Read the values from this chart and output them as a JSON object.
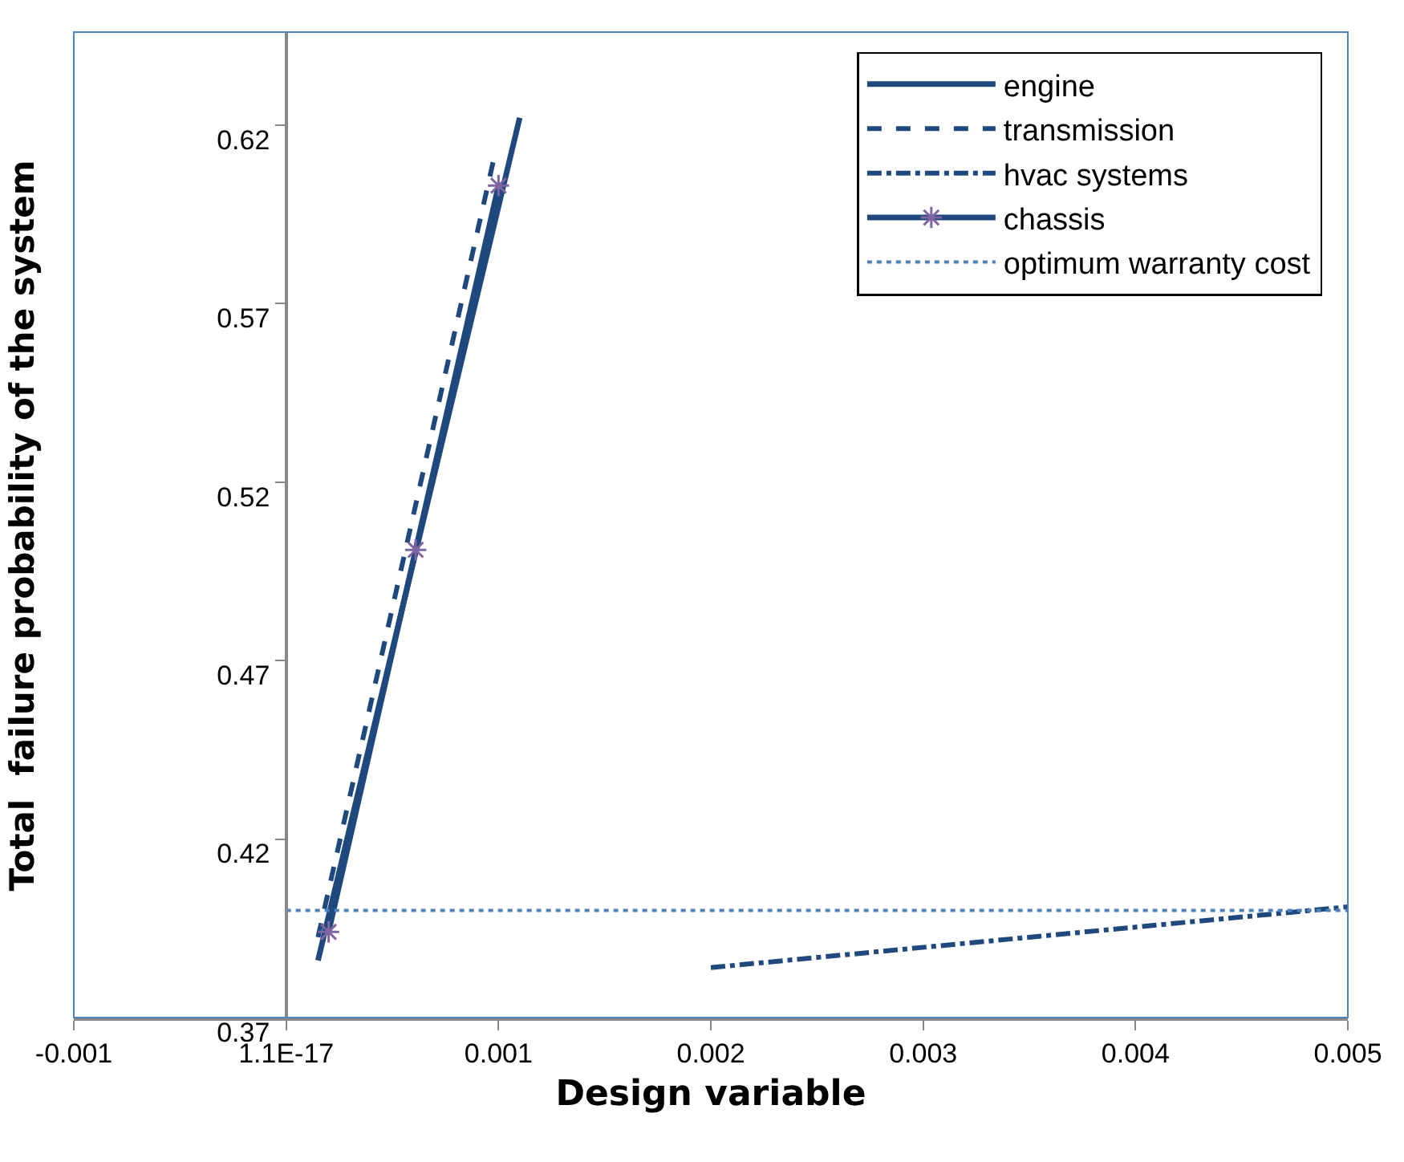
{
  "chart_data": {
    "type": "line",
    "xlabel": "Design variable",
    "ylabel": "Total  failure probability of the system",
    "xlim": [
      -0.001,
      0.005
    ],
    "xticks": [
      -0.001,
      {
        "value": 0,
        "label": "1.1E-17"
      },
      0.001,
      0.002,
      0.003,
      0.004,
      0.005
    ],
    "ylim": [
      0.37,
      0.646
    ],
    "yticks": [
      0.37,
      0.42,
      0.47,
      0.52,
      0.57,
      0.62
    ],
    "grid": false,
    "legend": "top right",
    "marker": "none",
    "series": [
      {
        "name": "engine",
        "color": "#1f497d",
        "line_style": "solid",
        "x": [
          0.00015,
          0.0011
        ],
        "values": [
          0.386,
          0.622
        ]
      },
      {
        "name": "transmission",
        "color": "#1f497d",
        "line_style": "dashed",
        "x": [
          0.00015,
          0.00098
        ],
        "values": [
          0.3925,
          0.611
        ]
      },
      {
        "name": "hvac systems",
        "color": "#1f497d",
        "line_style": "dashdot",
        "x": [
          0.002,
          0.005
        ],
        "values": [
          0.384,
          0.401
        ]
      },
      {
        "name": "chassis",
        "color": "#1f497d",
        "colors": [
          "#8064a2",
          "#8064a2",
          "#8064a2"
        ],
        "marker": "cross",
        "line_style": "solid",
        "x": [
          0.0002,
          0.00061,
          0.001
        ],
        "values": [
          0.394,
          0.501,
          0.603
        ]
      },
      {
        "name": "optimum warranty cost",
        "color": "#4f81bd",
        "line_style": "dotted",
        "x": [
          0,
          0.005
        ],
        "values": [
          0.4,
          0.4
        ]
      }
    ]
  }
}
